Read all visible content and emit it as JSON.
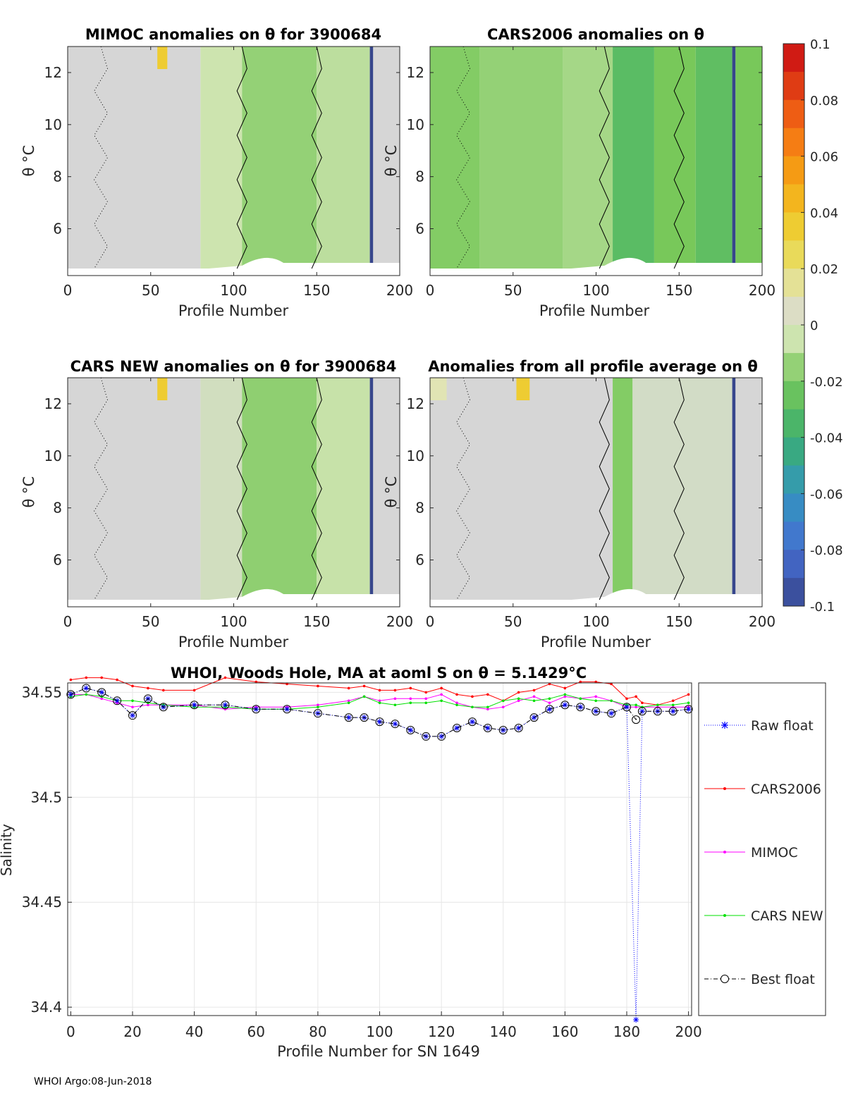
{
  "footer": "WHOI Argo:08-Jun-2018",
  "chart_data": [
    {
      "type": "heatmap",
      "title": "MIMOC anomalies on θ  for 3900684",
      "xlabel": "Profile Number",
      "ylabel": "θ °C",
      "xlim": [
        0,
        200
      ],
      "ylim": [
        4.2,
        13
      ],
      "xticks": [
        "0",
        "50",
        "100",
        "150",
        "200"
      ],
      "yticks": [
        "6",
        "8",
        "10",
        "12"
      ],
      "bands": [
        {
          "x0": 0,
          "x1": 80,
          "anomaly": 0.0
        },
        {
          "x0": 80,
          "x1": 105,
          "anomaly": -0.005
        },
        {
          "x0": 105,
          "x1": 150,
          "anomaly": -0.015
        },
        {
          "x0": 150,
          "x1": 182,
          "anomaly": -0.008
        },
        {
          "x0": 182,
          "x1": 184,
          "anomaly": -0.1
        },
        {
          "x0": 184,
          "x1": 200,
          "anomaly": 0.0
        }
      ],
      "warm_patches": [
        {
          "x0": 54,
          "x1": 60,
          "anomaly": 0.035
        }
      ]
    },
    {
      "type": "heatmap",
      "title": "CARS2006 anomalies on θ",
      "xlabel": "Profile Number",
      "ylabel": "θ °C",
      "xlim": [
        0,
        200
      ],
      "ylim": [
        4.2,
        13
      ],
      "xticks": [
        "0",
        "50",
        "100",
        "150",
        "200"
      ],
      "yticks": [
        "6",
        "8",
        "10",
        "12"
      ],
      "bands": [
        {
          "x0": 0,
          "x1": 30,
          "anomaly": -0.018
        },
        {
          "x0": 30,
          "x1": 80,
          "anomaly": -0.015
        },
        {
          "x0": 80,
          "x1": 110,
          "anomaly": -0.012
        },
        {
          "x0": 110,
          "x1": 135,
          "anomaly": -0.03
        },
        {
          "x0": 135,
          "x1": 160,
          "anomaly": -0.02
        },
        {
          "x0": 160,
          "x1": 182,
          "anomaly": -0.028
        },
        {
          "x0": 182,
          "x1": 184,
          "anomaly": -0.1
        },
        {
          "x0": 184,
          "x1": 200,
          "anomaly": -0.02
        }
      ],
      "warm_patches": []
    },
    {
      "type": "heatmap",
      "title": "CARS NEW anomalies on θ for 3900684",
      "xlabel": "Profile Number",
      "ylabel": "θ °C",
      "xlim": [
        0,
        200
      ],
      "ylim": [
        4.2,
        13
      ],
      "xticks": [
        "0",
        "50",
        "100",
        "150",
        "200"
      ],
      "yticks": [
        "6",
        "8",
        "10",
        "12"
      ],
      "bands": [
        {
          "x0": 0,
          "x1": 80,
          "anomaly": 0.0
        },
        {
          "x0": 80,
          "x1": 105,
          "anomaly": -0.003
        },
        {
          "x0": 105,
          "x1": 150,
          "anomaly": -0.016
        },
        {
          "x0": 150,
          "x1": 182,
          "anomaly": -0.006
        },
        {
          "x0": 182,
          "x1": 184,
          "anomaly": -0.1
        },
        {
          "x0": 184,
          "x1": 200,
          "anomaly": 0.0
        }
      ],
      "warm_patches": [
        {
          "x0": 54,
          "x1": 60,
          "anomaly": 0.035
        }
      ]
    },
    {
      "type": "heatmap",
      "title": "Anomalies from all profile average on θ",
      "xlabel": "Profile Number",
      "ylabel": "",
      "xlim": [
        0,
        200
      ],
      "ylim": [
        4.2,
        13
      ],
      "xticks": [
        "0",
        "50",
        "100",
        "150",
        "200"
      ],
      "yticks": [
        "6",
        "8",
        "10",
        "12"
      ],
      "bands": [
        {
          "x0": 0,
          "x1": 110,
          "anomaly": 0.0
        },
        {
          "x0": 110,
          "x1": 122,
          "anomaly": -0.018
        },
        {
          "x0": 122,
          "x1": 182,
          "anomaly": -0.002
        },
        {
          "x0": 182,
          "x1": 184,
          "anomaly": -0.1
        },
        {
          "x0": 184,
          "x1": 200,
          "anomaly": 0.0
        }
      ],
      "warm_patches": [
        {
          "x0": 52,
          "x1": 60,
          "anomaly": 0.035
        },
        {
          "x0": 0,
          "x1": 10,
          "anomaly": 0.01
        }
      ]
    },
    {
      "type": "colorbar",
      "min": -0.1,
      "max": 0.1,
      "tick_labels": [
        "0.1",
        "0.08",
        "0.06",
        "0.04",
        "0.02",
        "0",
        "-0.02",
        "-0.04",
        "-0.06",
        "-0.08",
        "-0.1"
      ]
    },
    {
      "type": "line",
      "title": "WHOI, Woods Hole, MA at aoml S on θ = 5.1429°C",
      "xlabel": "Profile Number for SN 1649",
      "ylabel": "Salinity",
      "xlim": [
        -1,
        201
      ],
      "ylim": [
        34.396,
        34.5545
      ],
      "xticks": [
        "0",
        "20",
        "40",
        "60",
        "80",
        "100",
        "120",
        "140",
        "160",
        "180",
        "200"
      ],
      "yticks": [
        "34.4",
        "34.45",
        "34.5",
        "34.55"
      ],
      "x": [
        0,
        5,
        10,
        15,
        20,
        25,
        30,
        40,
        50,
        60,
        70,
        80,
        90,
        95,
        100,
        105,
        110,
        115,
        120,
        125,
        130,
        135,
        140,
        145,
        150,
        155,
        160,
        165,
        170,
        175,
        180,
        183,
        185,
        190,
        195,
        200
      ],
      "series": [
        {
          "name": "Raw float",
          "color": "#0000ff",
          "values": [
            34.549,
            34.552,
            34.55,
            34.546,
            34.539,
            34.547,
            34.543,
            34.544,
            34.544,
            34.542,
            34.542,
            34.54,
            34.538,
            34.538,
            34.536,
            34.535,
            34.532,
            34.529,
            34.529,
            34.533,
            34.536,
            34.533,
            34.532,
            34.533,
            34.538,
            34.542,
            34.544,
            34.543,
            34.541,
            34.54,
            34.543,
            34.394,
            34.541,
            34.541,
            34.541,
            34.542
          ]
        },
        {
          "name": "CARS2006",
          "color": "#ff0000",
          "values": [
            34.556,
            34.557,
            34.557,
            34.556,
            34.553,
            34.552,
            34.551,
            34.551,
            34.557,
            34.555,
            34.554,
            34.553,
            34.552,
            34.553,
            34.551,
            34.551,
            34.552,
            34.55,
            34.552,
            34.549,
            34.548,
            34.549,
            34.546,
            34.55,
            34.551,
            34.554,
            34.552,
            34.555,
            34.555,
            34.554,
            34.547,
            34.548,
            34.545,
            34.544,
            34.546,
            34.549
          ]
        },
        {
          "name": "MIMOC",
          "color": "#ff00ff",
          "values": [
            34.549,
            34.549,
            34.547,
            34.545,
            34.543,
            34.544,
            34.544,
            34.544,
            34.542,
            34.543,
            34.543,
            34.544,
            34.546,
            34.548,
            34.546,
            34.547,
            34.547,
            34.547,
            34.549,
            34.545,
            34.543,
            34.542,
            34.543,
            34.546,
            34.548,
            34.545,
            34.548,
            34.547,
            34.548,
            34.546,
            34.543,
            34.543,
            34.543,
            34.543,
            34.543,
            34.543
          ]
        },
        {
          "name": "CARS NEW",
          "color": "#00e000",
          "values": [
            34.548,
            34.549,
            34.548,
            34.546,
            34.546,
            34.545,
            34.544,
            34.543,
            34.543,
            34.542,
            34.542,
            34.543,
            34.545,
            34.548,
            34.545,
            34.544,
            34.545,
            34.545,
            34.546,
            34.544,
            34.543,
            34.543,
            34.546,
            34.547,
            34.546,
            34.547,
            34.549,
            34.547,
            34.546,
            34.546,
            34.544,
            34.544,
            34.543,
            34.544,
            34.544,
            34.545
          ]
        },
        {
          "name": "Best float",
          "color": "#000000",
          "values": [
            34.549,
            34.552,
            34.55,
            34.546,
            34.539,
            34.547,
            34.543,
            34.544,
            34.544,
            34.542,
            34.542,
            34.54,
            34.538,
            34.538,
            34.536,
            34.535,
            34.532,
            34.529,
            34.529,
            34.533,
            34.536,
            34.533,
            34.532,
            34.533,
            34.538,
            34.542,
            34.544,
            34.543,
            34.541,
            34.54,
            34.543,
            34.537,
            34.541,
            34.541,
            34.541,
            34.542
          ]
        }
      ],
      "legend": "right-outside"
    }
  ]
}
